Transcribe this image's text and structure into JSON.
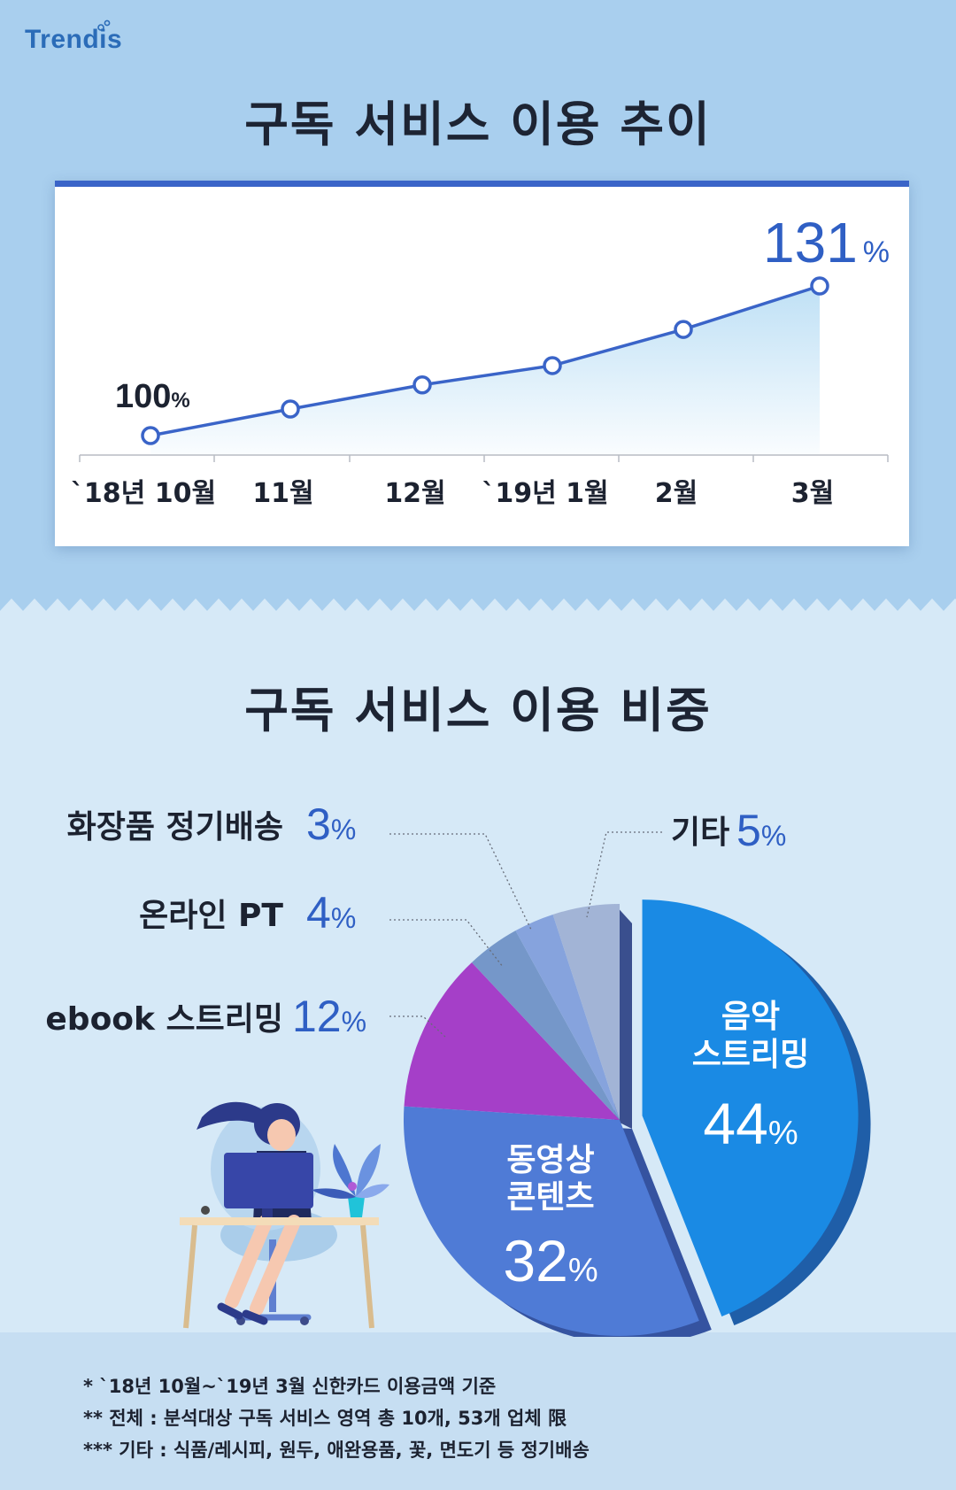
{
  "brand": {
    "logo": "Trendis"
  },
  "section1": {
    "title": "구독 서비스 이용 추이"
  },
  "section2": {
    "title": "구독 서비스 이용 비중"
  },
  "chart_data": [
    {
      "type": "line",
      "title": "구독 서비스 이용 추이",
      "categories": [
        "`18년 10월",
        "11월",
        "12월",
        "`19년 1월",
        "2월",
        "3월"
      ],
      "values": [
        100,
        105.5,
        110.5,
        114.5,
        122,
        131
      ],
      "data_labels": [
        {
          "index": 0,
          "number": "100",
          "unit": "%"
        },
        {
          "index": 5,
          "number": "131",
          "unit": "%"
        }
      ],
      "ylim": [
        94,
        134
      ],
      "grid": false,
      "colors": {
        "line": "#3a64c8",
        "fill": "#bcdff5"
      }
    },
    {
      "type": "pie",
      "title": "구독 서비스 이용 비중",
      "slices": [
        {
          "label": "음악 스트리밍",
          "lines": [
            "음악",
            "스트리밍"
          ],
          "value": 44,
          "color": "#1a8ae4",
          "side": "#1f5ea8",
          "exploded": true
        },
        {
          "label": "동영상 콘텐츠",
          "lines": [
            "동영상",
            "콘텐츠"
          ],
          "value": 32,
          "color": "#4f7bd6",
          "side": "#3553a0"
        },
        {
          "label": "ebook 스트리밍",
          "value": 12,
          "color": "#a53fc8"
        },
        {
          "label": "온라인 PT",
          "value": 4,
          "color": "#7597c9"
        },
        {
          "label": "화장품 정기배송",
          "value": 3,
          "color": "#86a3dd"
        },
        {
          "label": "기타",
          "value": 5,
          "color": "#a2b4d6"
        }
      ],
      "unit": "%"
    }
  ],
  "notes": [
    "* `18년 10월~`19년 3월 신한카드 이용금액 기준",
    "** 전체 : 분석대상 구독 서비스 영역 총 10개, 53개 업체 限",
    "*** 기타 : 식품/레시피, 원두, 애완용품, 꽃, 면도기 등 정기배송"
  ]
}
